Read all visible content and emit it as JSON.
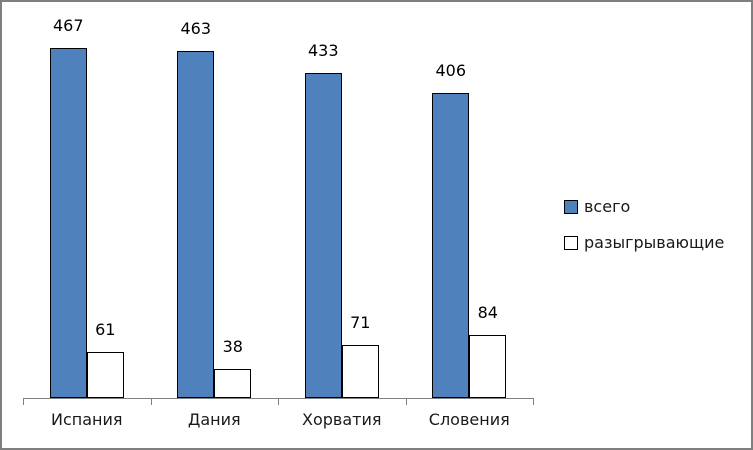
{
  "chart_data": {
    "type": "bar",
    "title": "",
    "xlabel": "",
    "ylabel": "",
    "categories": [
      "Испания",
      "Дания",
      "Хорватия",
      "Словения"
    ],
    "series": [
      {
        "name": "всего",
        "color": "#4F81BD",
        "values": [
          467,
          463,
          433,
          406
        ]
      },
      {
        "name": "разыгрывающие",
        "color": "#FFFFFF",
        "values": [
          61,
          38,
          71,
          84
        ]
      }
    ],
    "ylim": [
      0,
      500
    ],
    "grid": false,
    "y_axis_visible": false,
    "data_labels": true,
    "legend_position": "right",
    "bar_border_color": "#000000",
    "axis_color": "#808080",
    "frame_color": "#7F7F7F",
    "background": "#FFFFFF"
  }
}
